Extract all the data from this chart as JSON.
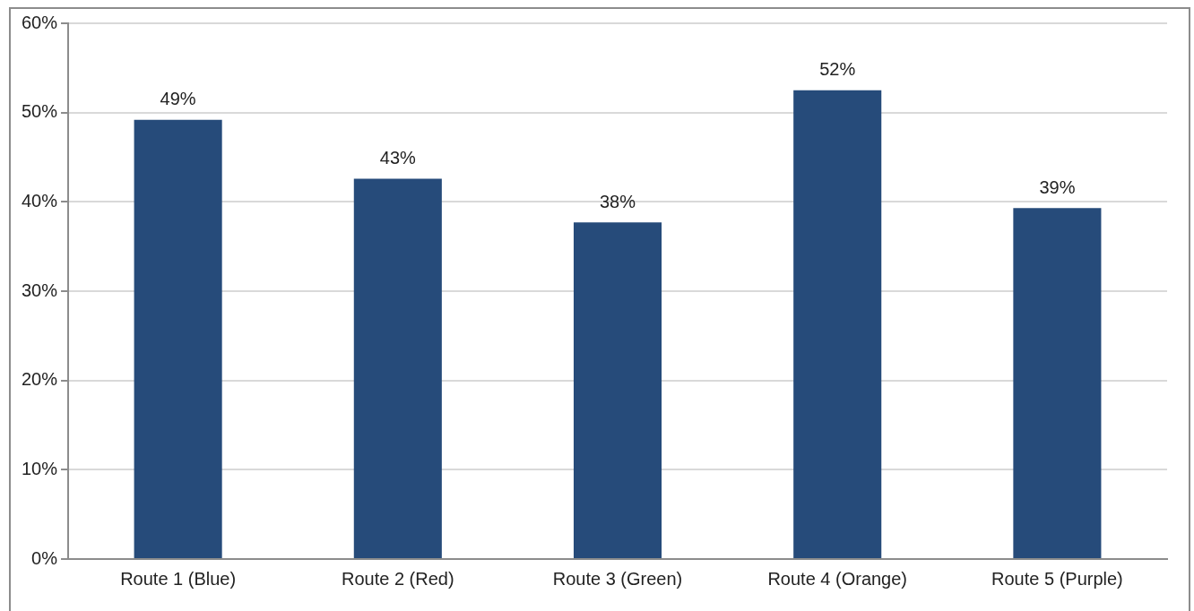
{
  "chart_data": {
    "type": "bar",
    "categories": [
      "Route 1 (Blue)",
      "Route 2 (Red)",
      "Route 3 (Green)",
      "Route 4 (Orange)",
      "Route 5 (Purple)"
    ],
    "values": [
      49.2,
      42.6,
      37.7,
      52.5,
      39.3
    ],
    "value_labels": [
      "49%",
      "43%",
      "38%",
      "52%",
      "39%"
    ],
    "color": "#264b7a",
    "ylim": [
      0,
      60
    ],
    "yticks": [
      {
        "value": 0,
        "label": "0%"
      },
      {
        "value": 10,
        "label": "10%"
      },
      {
        "value": 20,
        "label": "20%"
      },
      {
        "value": 30,
        "label": "30%"
      },
      {
        "value": 40,
        "label": "40%"
      },
      {
        "value": 50,
        "label": "50%"
      },
      {
        "value": 60,
        "label": "60%"
      }
    ],
    "grid": "y",
    "legend": false
  }
}
